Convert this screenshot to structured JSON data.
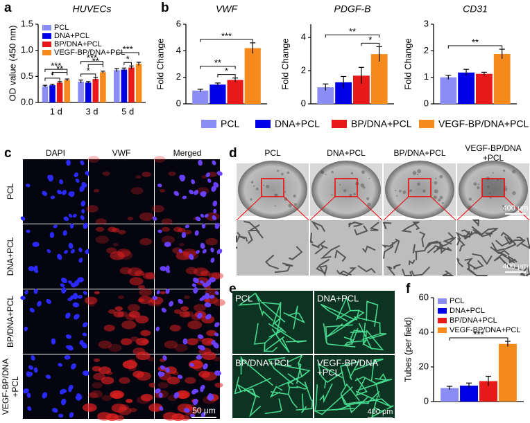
{
  "panel_labels": [
    "a",
    "b",
    "c",
    "d",
    "e",
    "f"
  ],
  "legend_b": [
    {
      "name": "PCL",
      "color": "#8c8cf5"
    },
    {
      "name": "DNA+PCL",
      "color": "#0000e6"
    },
    {
      "name": "BP/DNA+PCL",
      "color": "#e81919"
    },
    {
      "name": "VEGF-BP/DNA+PCL",
      "color": "#f78a1d"
    }
  ],
  "chart_data": [
    {
      "type": "bar",
      "title": "HUVECs",
      "ylabel": "OD value (450 nm)",
      "categories": [
        "1 d",
        "3 d",
        "5 d"
      ],
      "series": [
        {
          "name": "PCL",
          "color": "#8c8cf5",
          "values": [
            0.31,
            0.4,
            0.62
          ],
          "errors": [
            0.02,
            0.03,
            0.03
          ]
        },
        {
          "name": "DNA+PCL",
          "color": "#0000e6",
          "values": [
            0.33,
            0.38,
            0.63
          ],
          "errors": [
            0.02,
            0.02,
            0.03
          ]
        },
        {
          "name": "BP/DNA+PCL",
          "color": "#e81919",
          "values": [
            0.38,
            0.45,
            0.67
          ],
          "errors": [
            0.02,
            0.03,
            0.03
          ]
        },
        {
          "name": "VEGF-BP/DNA+PCL",
          "color": "#f78a1d",
          "values": [
            0.43,
            0.58,
            0.74
          ],
          "errors": [
            0.02,
            0.02,
            0.03
          ]
        }
      ],
      "ylim": [
        0,
        1.5
      ],
      "yticks": [
        {
          "value": 0,
          "label": "0.0"
        },
        0.5,
        {
          "value": 1,
          "label": "1.0"
        },
        1.5
      ],
      "annotations": [
        "*",
        "***",
        "**",
        "*",
        "***",
        "**",
        "*",
        "***"
      ]
    },
    {
      "type": "bar",
      "title": "VWF",
      "ylabel": "Fold Change",
      "values": [
        1.0,
        1.45,
        1.8,
        4.2
      ],
      "errors": [
        0.1,
        0.12,
        0.15,
        0.4
      ],
      "ylim": [
        0,
        6
      ],
      "yticks": [
        0,
        2,
        4,
        6
      ],
      "annotations": [
        "***",
        "**",
        "*"
      ]
    },
    {
      "type": "bar",
      "title": "PDGF-B",
      "ylabel": "Fold Change",
      "values": [
        1.0,
        1.3,
        1.7,
        3.0
      ],
      "errors": [
        0.2,
        0.35,
        0.5,
        0.45
      ],
      "ylim": [
        0,
        4.8
      ],
      "yticks": [
        0,
        2,
        4
      ],
      "annotations": [
        "**",
        "*"
      ]
    },
    {
      "type": "bar",
      "title": "CD31",
      "ylabel": "Fold Change",
      "values": [
        1.0,
        1.18,
        1.13,
        1.88
      ],
      "errors": [
        0.08,
        0.12,
        0.06,
        0.18
      ],
      "ylim": [
        0,
        3
      ],
      "yticks": [
        0,
        1,
        2,
        3
      ],
      "annotations": [
        "**"
      ]
    },
    {
      "type": "bar",
      "ylabel": "Tubes (per field)",
      "series": [
        {
          "name": "PCL",
          "color": "#8c8cf5",
          "values": [
            7.8
          ],
          "errors": [
            1.0
          ]
        },
        {
          "name": "DNA+PCL",
          "color": "#0000e6",
          "values": [
            9.2
          ],
          "errors": [
            1.5
          ]
        },
        {
          "name": "BP/DNA+PCL",
          "color": "#e81919",
          "values": [
            11.8
          ],
          "errors": [
            2.8
          ]
        },
        {
          "name": "VEGF-BP/DNA+PCL",
          "color": "#f78a1d",
          "values": [
            33.3
          ],
          "errors": [
            1.5
          ]
        }
      ],
      "ylim": [
        0,
        60
      ],
      "yticks": [
        0,
        20,
        40,
        60
      ],
      "annotations": [
        "***"
      ]
    }
  ],
  "images": {
    "c": {
      "columns": [
        "DAPI",
        "VWF",
        "Merged"
      ],
      "rows": [
        [
          "PCL"
        ],
        [
          "DNA+PCL"
        ],
        [
          "BP/DNA+PCL"
        ],
        [
          "VEGF-BP/DNA",
          "+PCL"
        ]
      ],
      "scale_bar": "50 μm"
    },
    "d": {
      "columns": [
        [
          "PCL"
        ],
        [
          "DNA+PCL"
        ],
        [
          "BP/DNA+PCL"
        ],
        [
          "VEGF-BP/DNA",
          "+PCL"
        ]
      ],
      "scale_bars": [
        "400 μm",
        "400 μm"
      ]
    },
    "e": {
      "labels": [
        [
          "PCL"
        ],
        [
          "DNA+PCL"
        ],
        [
          "BP/DNA+PCL"
        ],
        [
          "VEGF-BP/DNA",
          "+PCL"
        ]
      ],
      "scale_bar": "400 μm"
    }
  }
}
